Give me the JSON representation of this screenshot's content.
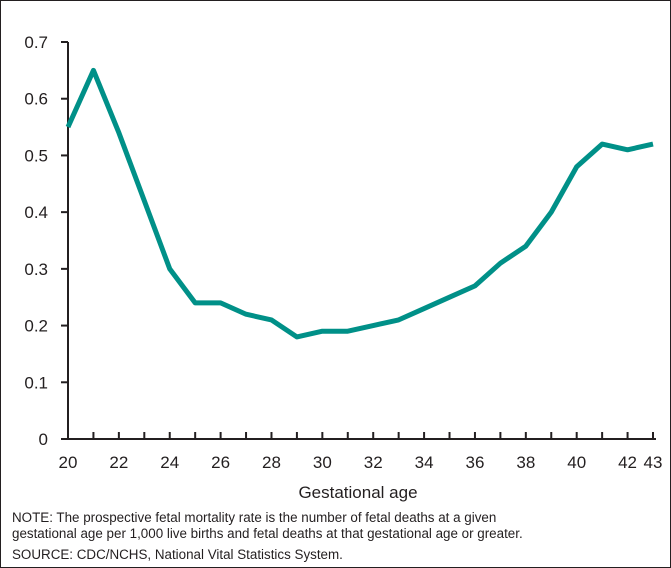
{
  "chart_data": {
    "type": "line",
    "title": "",
    "xlabel": "Gestational age",
    "ylabel": "",
    "x": [
      20,
      21,
      22,
      23,
      24,
      25,
      26,
      27,
      28,
      29,
      30,
      31,
      32,
      33,
      34,
      35,
      36,
      37,
      38,
      39,
      40,
      41,
      42,
      43
    ],
    "series": [
      {
        "values": [
          0.55,
          0.65,
          0.54,
          0.42,
          0.3,
          0.24,
          0.24,
          0.22,
          0.21,
          0.18,
          0.19,
          0.19,
          0.2,
          0.21,
          0.23,
          0.25,
          0.27,
          0.31,
          0.34,
          0.4,
          0.48,
          0.52,
          0.51,
          0.52
        ]
      }
    ],
    "xlim": [
      20,
      43
    ],
    "ylim": [
      0,
      0.7
    ],
    "x_ticks": [
      20,
      22,
      24,
      26,
      28,
      30,
      32,
      34,
      36,
      38,
      40,
      42,
      43
    ],
    "y_ticks": [
      0,
      0.1,
      0.2,
      0.3,
      0.4,
      0.5,
      0.6,
      0.7
    ],
    "y_tick_labels": [
      "0",
      "0.1",
      "0.2",
      "0.3",
      "0.4",
      "0.5",
      "0.6",
      "0.7"
    ],
    "line_color": "#009088",
    "axis_color": "#231f20",
    "grid": false,
    "legend": "none"
  },
  "notes": {
    "note_line1": "NOTE: The prospective fetal mortality rate is the number of fetal deaths at a given",
    "note_line2": "gestational age per 1,000 live births and fetal deaths at that gestational age or greater.",
    "source": "SOURCE: CDC/NCHS, National Vital Statistics System."
  }
}
